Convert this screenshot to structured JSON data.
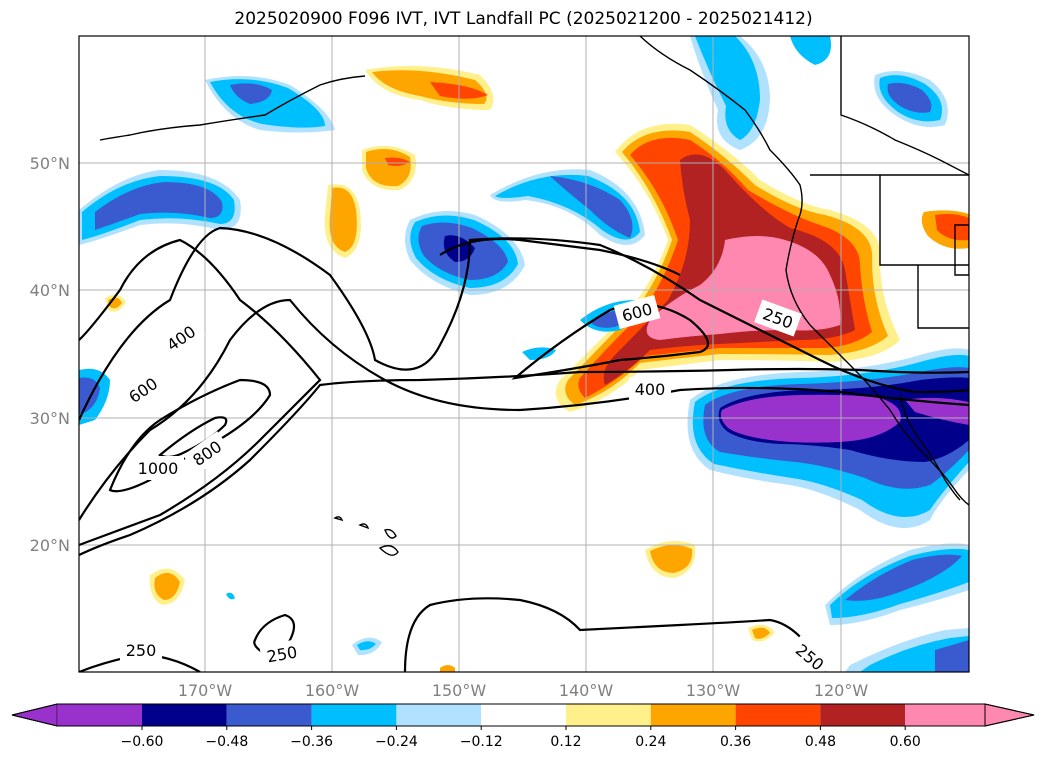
{
  "title": "2025020900 F096 IVT, IVT Landfall PC (2025021200 - 2025021412)",
  "lat_labels": [
    "50°N",
    "40°N",
    "30°N",
    "20°N"
  ],
  "lon_labels": [
    "170°W",
    "160°W",
    "150°W",
    "140°W",
    "130°W",
    "120°W"
  ],
  "colorbar": {
    "ticks": [
      "−0.60",
      "−0.48",
      "−0.36",
      "−0.24",
      "−0.12",
      "0.12",
      "0.24",
      "0.36",
      "0.48",
      "0.60"
    ],
    "colors": [
      "#9932cc",
      "#00008b",
      "#3a5bd0",
      "#00bfff",
      "#b0e2ff",
      "#ffffff",
      "#fff08c",
      "#ffa500",
      "#ff4500",
      "#b22222",
      "#ff88b0"
    ]
  },
  "contour_labels": {
    "c400a": "400",
    "c600a": "600",
    "c800": "800",
    "c1000": "1000",
    "c600b": "600",
    "c250a": "250",
    "c400b": "400",
    "c250b": "250",
    "c250c": "250",
    "c250d": "250"
  }
}
